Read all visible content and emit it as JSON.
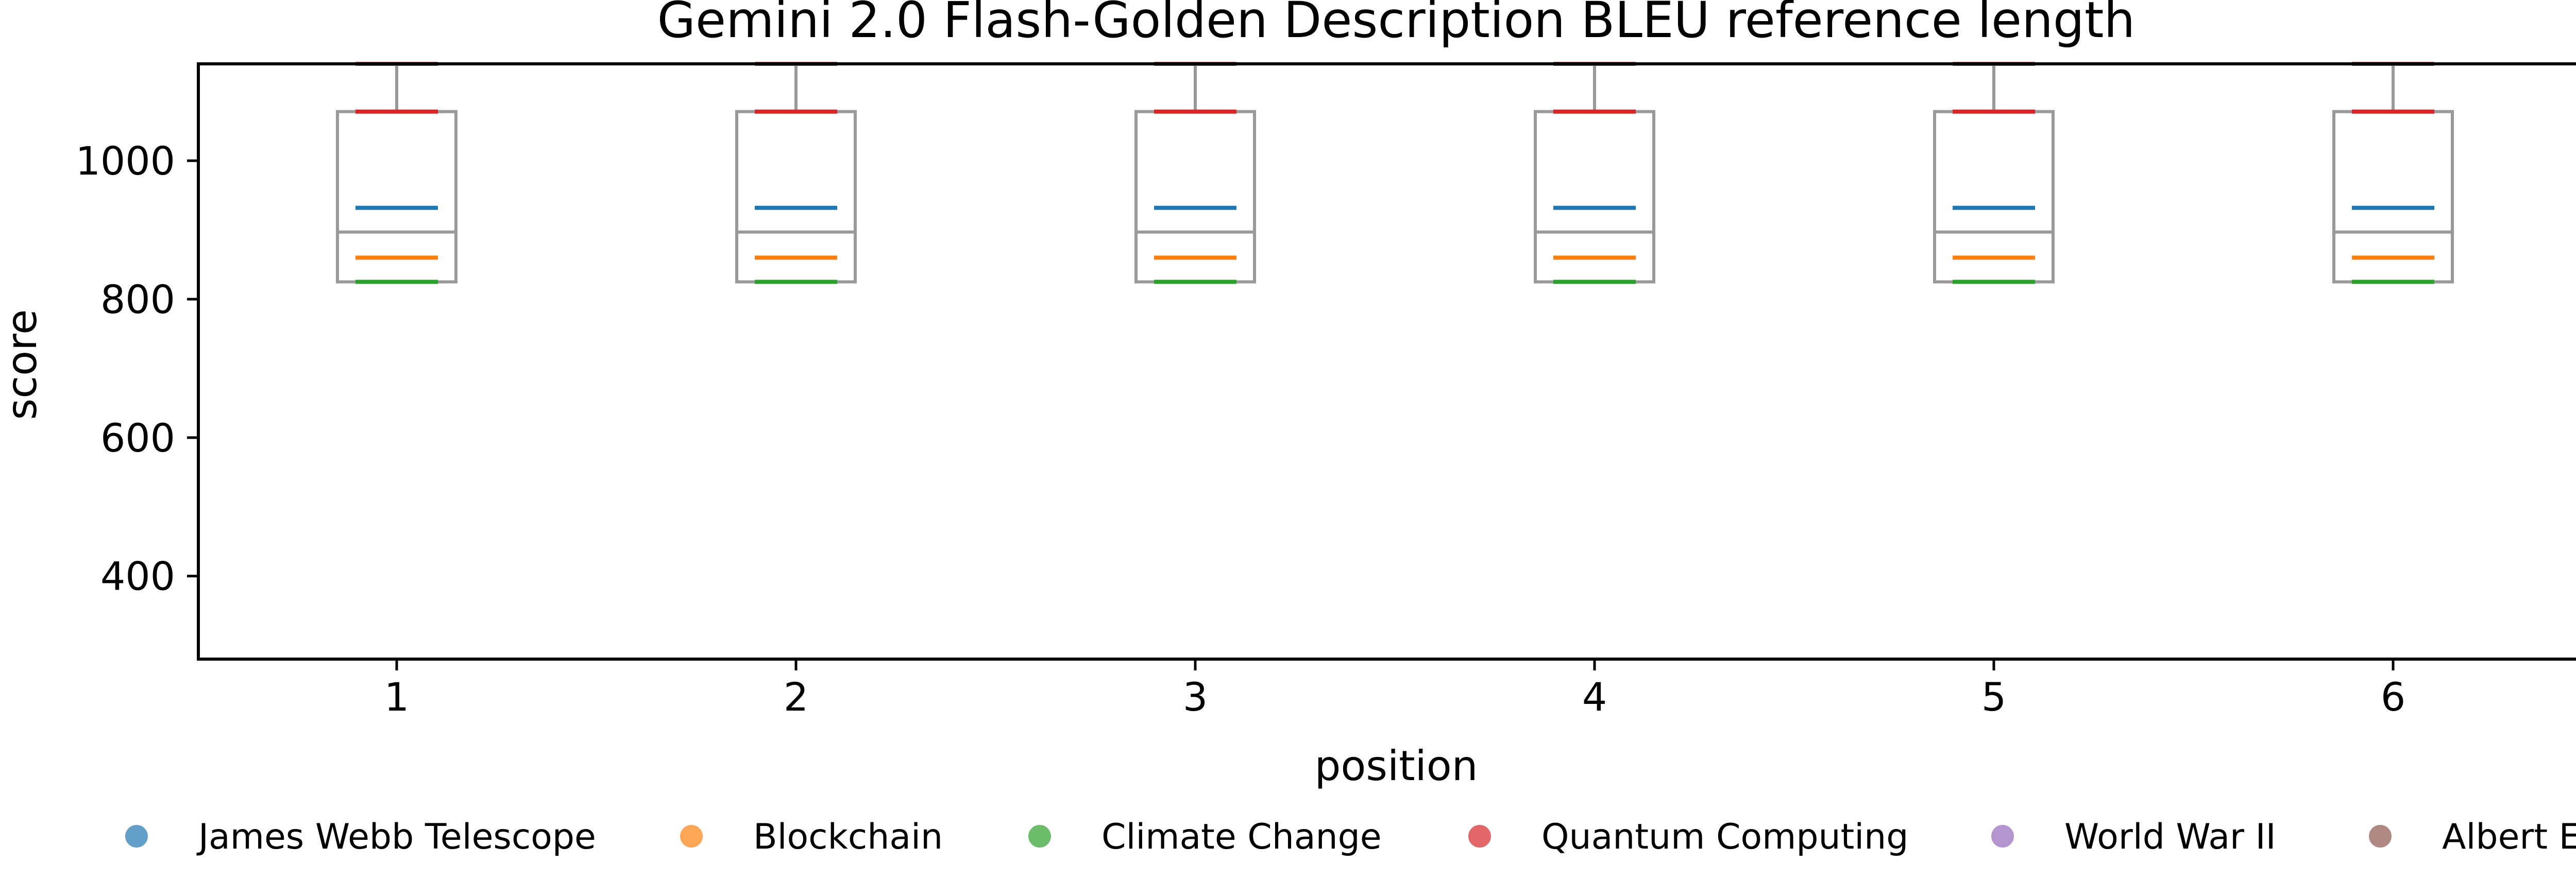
{
  "chart_data": {
    "type": "box",
    "title": "Gemini 2.0 Flash-Golden Description BLEU reference length",
    "xlabel": "position",
    "ylabel": "score",
    "categories": [
      "1",
      "2",
      "3",
      "4",
      "5",
      "6"
    ],
    "x_ticks": [
      "1",
      "2",
      "3",
      "4",
      "5",
      "6"
    ],
    "y_ticks": [
      "400",
      "600",
      "800",
      "1000"
    ],
    "ylim": [
      280,
      1140
    ],
    "grid": false,
    "legend_position": "bottom",
    "boxes": [
      {
        "position": "1",
        "whisker_low": 825,
        "q1": 825,
        "median": 897,
        "q3": 1071,
        "whisker_high": 1140
      },
      {
        "position": "2",
        "whisker_low": 825,
        "q1": 825,
        "median": 897,
        "q3": 1071,
        "whisker_high": 1140
      },
      {
        "position": "3",
        "whisker_low": 825,
        "q1": 825,
        "median": 897,
        "q3": 1071,
        "whisker_high": 1140
      },
      {
        "position": "4",
        "whisker_low": 825,
        "q1": 825,
        "median": 897,
        "q3": 1071,
        "whisker_high": 1140
      },
      {
        "position": "5",
        "whisker_low": 825,
        "q1": 825,
        "median": 897,
        "q3": 1071,
        "whisker_high": 1140
      },
      {
        "position": "6",
        "whisker_low": 825,
        "q1": 825,
        "median": 897,
        "q3": 1071,
        "whisker_high": 1140
      }
    ],
    "series": [
      {
        "name": "James Webb Telescope",
        "color": "#1f77b4",
        "values": [
          932,
          932,
          932,
          932,
          932,
          932
        ]
      },
      {
        "name": "Blockchain",
        "color": "#ff7f0e",
        "values": [
          860,
          860,
          860,
          860,
          860,
          860
        ]
      },
      {
        "name": "Climate Change",
        "color": "#2ca02c",
        "values": [
          825,
          825,
          825,
          825,
          825,
          825
        ]
      },
      {
        "name": "Quantum Computing",
        "color": "#d62728",
        "values": [
          1071,
          1071,
          1071,
          1071,
          1071,
          1071
        ]
      },
      {
        "name": "World War II",
        "color": "#9467bd",
        "values": [
          1140,
          1140,
          1140,
          1140,
          1140,
          1140
        ]
      },
      {
        "name": "Albert Einstein",
        "color": "#8c564b",
        "values": [
          1140,
          1140,
          1140,
          1140,
          1140,
          1140
        ]
      }
    ],
    "box_color": "#999999"
  }
}
